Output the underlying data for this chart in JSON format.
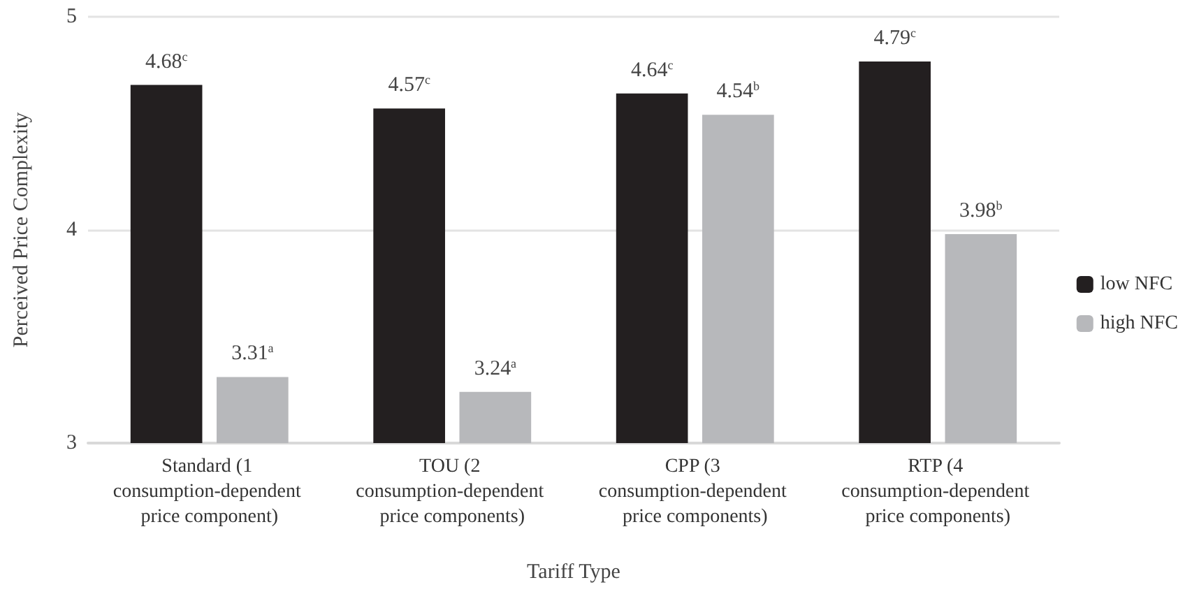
{
  "chart_data": {
    "type": "bar",
    "xlabel": "Tariff Type",
    "ylabel": "Perceived Price Complexity",
    "categories": [
      "Standard (1 consumption-dependent price component)",
      "TOU (2 consumption-dependent price components)",
      "CPP (3 consumption-dependent price components)",
      "RTP (4 consumption-dependent price components)"
    ],
    "series": [
      {
        "name": "low NFC",
        "color": "#231f20",
        "values": [
          4.68,
          4.57,
          4.64,
          4.79
        ],
        "value_labels": [
          "4.68$^{c}$",
          "4.57$^{c}$",
          "4.64$^{c}$",
          "4.79$^{c}$"
        ]
      },
      {
        "name": "high NFC",
        "color": "#b7b8bb",
        "values": [
          3.31,
          3.24,
          4.54,
          3.98
        ],
        "value_labels": [
          "3.31$^{a}$",
          "3.24$^{a}$",
          "4.54$^{b}$",
          "3.98$^{b}$"
        ]
      }
    ],
    "ylim": [
      3,
      5
    ],
    "yticks": [
      3,
      4,
      5
    ],
    "grid": "y",
    "legend": "right"
  }
}
